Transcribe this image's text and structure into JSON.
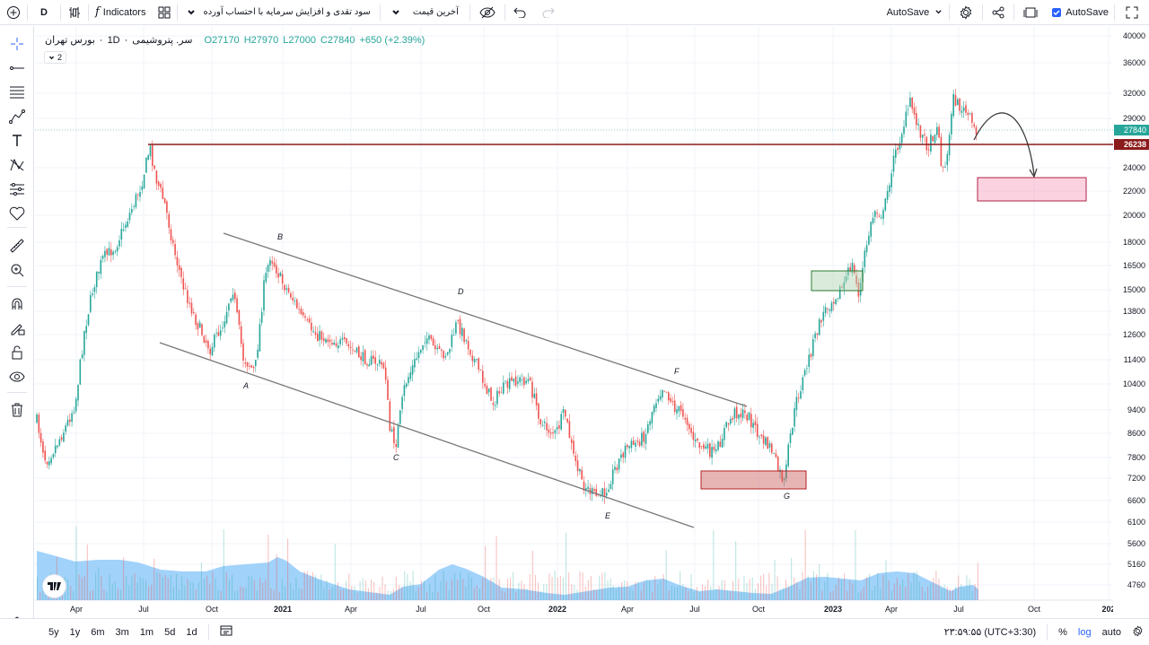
{
  "toolbar": {
    "interval": "D",
    "indicators_label": "Indicators",
    "script_label": "سود تقدی و افزایش سرمایه با احتساب آورده",
    "price_type_label": "آخرین قیمت",
    "autosave_dropdown": "AutoSave",
    "autosave_label": "AutoSave"
  },
  "legend": {
    "exchange": "بورس تهران",
    "interval": "1D",
    "symbol": "سر. پتروشیمی",
    "open": "O27170",
    "high": "H27970",
    "low": "L27000",
    "close": "C27840",
    "change": "+650 (+2.39%)",
    "collapsed_count": "2"
  },
  "price_axis": {
    "ticks": [
      "40000",
      "36000",
      "32000",
      "29000",
      "24000",
      "22000",
      "20000",
      "18000",
      "16500",
      "15000",
      "13800",
      "12600",
      "11400",
      "10400",
      "9400",
      "8600",
      "7800",
      "7200",
      "6600",
      "6100",
      "5600",
      "5160",
      "4760"
    ],
    "current_price": "27840",
    "line_price": "26238"
  },
  "time_axis": {
    "labels": [
      "Apr",
      "Jul",
      "Oct",
      "2021",
      "Apr",
      "Jul",
      "Oct",
      "2022",
      "Apr",
      "Jul",
      "Oct",
      "2023",
      "Apr",
      "Jul",
      "Oct",
      "202"
    ]
  },
  "annotations": [
    "A",
    "B",
    "C",
    "D",
    "E",
    "F",
    "G"
  ],
  "bottombar": {
    "ranges": [
      "5y",
      "1y",
      "6m",
      "3m",
      "1m",
      "5d",
      "1d"
    ],
    "clock": "۲۳:۵۹:۵۵ (UTC+3:30)",
    "percent": "%",
    "log": "log",
    "auto": "auto"
  },
  "colors": {
    "up": "#26a69a",
    "down": "#ef5350",
    "volume": "#64b5f6",
    "resistance": "#8b1a1a",
    "accent": "#2962ff"
  },
  "icons": [
    "plus-circle-icon",
    "bars-icon",
    "grid-icon",
    "chevron-down-icon",
    "eye-off-icon",
    "undo-icon",
    "redo-icon",
    "gear-icon",
    "share-icon",
    "camera-icon",
    "fullscreen-icon",
    "crosshair-icon",
    "trendline-icon",
    "fib-icon",
    "brush-icon",
    "text-icon",
    "pattern-icon",
    "measure-icon",
    "heart-icon",
    "ruler-icon",
    "zoom-icon",
    "magnet-icon",
    "lock-draw-icon",
    "lock-icon",
    "eye-icon",
    "trash-icon",
    "layers-icon",
    "range-icon",
    "settings-icon"
  ]
}
